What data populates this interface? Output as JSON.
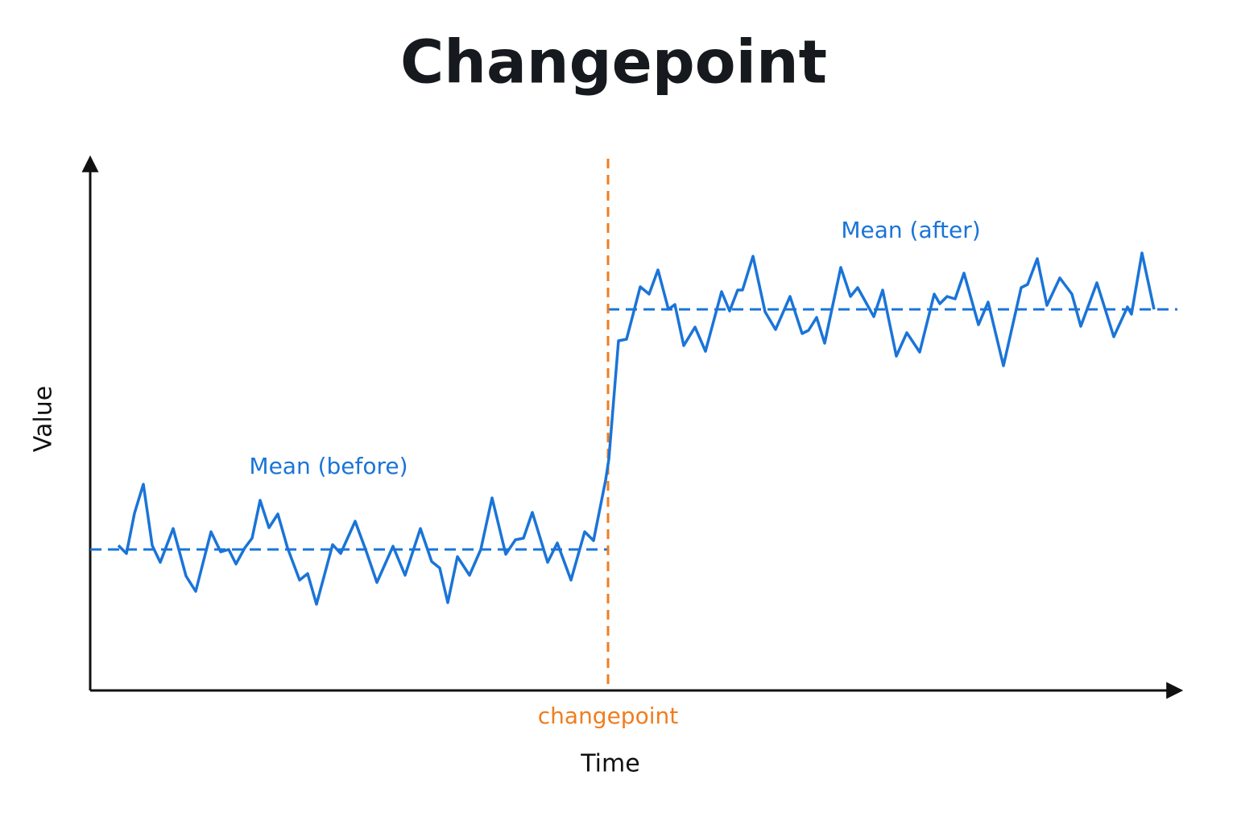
{
  "chart_data": {
    "type": "line",
    "title": "Changepoint",
    "x_label": "Time",
    "y_label": "Value",
    "xlim": [
      0,
      1353
    ],
    "ylim": [
      0,
      660
    ],
    "x": [
      35,
      45,
      55,
      66,
      77,
      87,
      103,
      119,
      131,
      150,
      162,
      172,
      181,
      192,
      201,
      211,
      222,
      233,
      245,
      260,
      270,
      281,
      301,
      311,
      329,
      343,
      356,
      376,
      391,
      410,
      424,
      434,
      444,
      456,
      471,
      485,
      499,
      516,
      528,
      538,
      549,
      568,
      580,
      597,
      614,
      625,
      640,
      644,
      656,
      666,
      683,
      694,
      705,
      718,
      726,
      737,
      751,
      764,
      784,
      794,
      804,
      810,
      823,
      838,
      851,
      869,
      884,
      892,
      902,
      912,
      932,
      944,
      953,
      973,
      984,
      1001,
      1014,
      1030,
      1048,
      1055,
      1064,
      1074,
      1085,
      1103,
      1115,
      1134,
      1156,
      1164,
      1176,
      1188,
      1204,
      1219,
      1230,
      1250,
      1271,
      1288,
      1293,
      1306,
      1321
    ],
    "series": [
      {
        "color": "#1a74d8",
        "values": [
          180,
          170,
          220,
          256,
          180,
          159,
          201,
          142,
          123,
          197,
          172,
          175,
          157,
          177,
          189,
          236,
          202,
          219,
          177,
          137,
          145,
          107,
          181,
          170,
          210,
          172,
          134,
          179,
          143,
          201,
          160,
          152,
          109,
          166,
          143,
          175,
          239,
          169,
          187,
          189,
          221,
          159,
          183,
          137,
          197,
          186,
          261,
          287,
          434,
          436,
          501,
          492,
          522,
          473,
          479,
          428,
          451,
          421,
          495,
          471,
          497,
          497,
          539,
          470,
          448,
          489,
          443,
          447,
          463,
          431,
          525,
          489,
          500,
          464,
          497,
          415,
          444,
          420,
          492,
          480,
          489,
          486,
          518,
          454,
          482,
          403,
          500,
          504,
          536,
          478,
          512,
          492,
          452,
          506,
          439,
          476,
          467,
          543,
          473
        ]
      }
    ],
    "means": [
      {
        "label": "Mean (before)",
        "value": 175,
        "x_range": [
          0,
          643
        ],
        "color": "#1a74d8"
      },
      {
        "label": "Mean (after)",
        "value": 473,
        "x_range": [
          643,
          1350
        ],
        "color": "#1a74d8"
      }
    ],
    "changepoint": {
      "label": "changepoint",
      "value": 643,
      "color": "#f07d1e"
    }
  }
}
